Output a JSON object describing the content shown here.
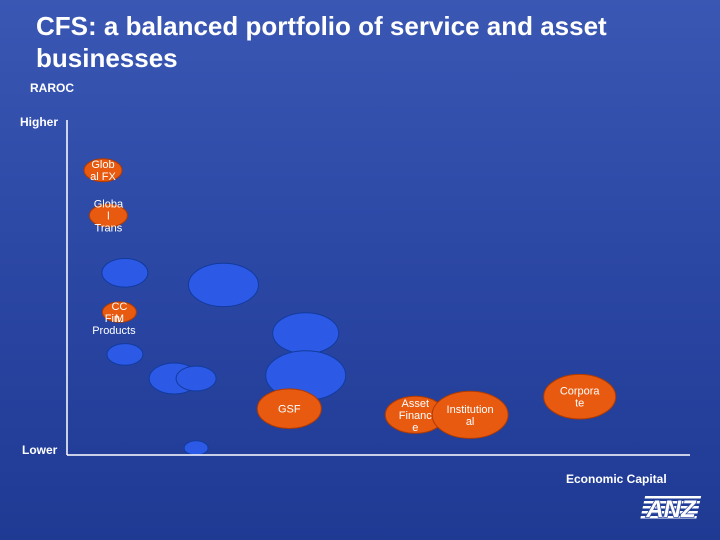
{
  "title": "CFS: a balanced portfolio of service and asset businesses",
  "colors": {
    "background": "#2b47a4",
    "orange_bubble": "#e85a10",
    "blue_bubble": "#2c5ae6",
    "axis": "#ffffff",
    "text": "#ffffff"
  },
  "chart_data": {
    "type": "scatter",
    "title": "CFS: a balanced portfolio of service and asset businesses",
    "xlabel": "Economic Capital",
    "ylabel": "RAROC",
    "y_high_label": "Higher",
    "y_low_label": "Lower",
    "xlim": [
      0,
      100
    ],
    "ylim": [
      0,
      100
    ],
    "grid": false,
    "legend": "none",
    "points": [
      {
        "label": "Glob al FX",
        "lines": [
          "Glob",
          "al FX"
        ],
        "x": 2,
        "y": 92,
        "r": 19,
        "color": "orange"
      },
      {
        "label": "Globa l Trans",
        "lines": [
          "Globa",
          "l",
          "Trans"
        ],
        "x": 3,
        "y": 77,
        "r": 19,
        "color": "orange"
      },
      {
        "label": "",
        "x": 6,
        "y": 58,
        "r": 23,
        "color": "blue"
      },
      {
        "label": "CC M",
        "lines": [
          "CC",
          "M"
        ],
        "x": 5,
        "y": 45,
        "r": 17,
        "color": "orange"
      },
      {
        "label": "Fin. Products",
        "lines": [
          "Fin.",
          "Products"
        ],
        "x": 4,
        "y": 41,
        "r": 0,
        "color": "none"
      },
      {
        "label": "",
        "x": 6,
        "y": 31,
        "r": 18,
        "color": "blue"
      },
      {
        "label": "",
        "x": 24,
        "y": 54,
        "r": 35,
        "color": "blue"
      },
      {
        "label": "",
        "x": 39,
        "y": 38,
        "r": 33,
        "color": "blue"
      },
      {
        "label": "",
        "x": 15,
        "y": 23,
        "r": 25,
        "color": "blue"
      },
      {
        "label": "",
        "x": 19,
        "y": 23,
        "r": 20,
        "color": "blue"
      },
      {
        "label": "",
        "x": 39,
        "y": 24,
        "r": 40,
        "color": "blue"
      },
      {
        "label": "GSF",
        "lines": [
          "GSF"
        ],
        "x": 36,
        "y": 13,
        "r": 32,
        "color": "orange"
      },
      {
        "label": "",
        "x": 19,
        "y": 0,
        "r": 12,
        "color": "blue"
      },
      {
        "label": "Asset Financ e",
        "lines": [
          "Asset",
          "Financ",
          "e"
        ],
        "x": 59,
        "y": 11,
        "r": 30,
        "color": "orange"
      },
      {
        "label": "Institution al",
        "lines": [
          "Institution",
          "al"
        ],
        "x": 69,
        "y": 11,
        "r": 38,
        "color": "orange"
      },
      {
        "label": "Corpora te",
        "lines": [
          "Corpora",
          "te"
        ],
        "x": 89,
        "y": 17,
        "r": 36,
        "color": "orange"
      }
    ]
  },
  "logo": {
    "text": "ANZ"
  }
}
